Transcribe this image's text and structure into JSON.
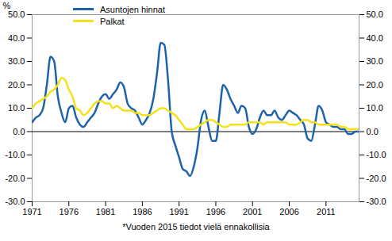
{
  "chart_data": {
    "type": "line",
    "caption": "*Vuoden 2015 tiedot vielä ennakollisia",
    "y_label": "%",
    "legend": "top-left",
    "grid": false,
    "x": [
      1971,
      1971.5,
      1972,
      1972.5,
      1973,
      1973.5,
      1974,
      1974.5,
      1975,
      1975.5,
      1976,
      1976.5,
      1977,
      1977.5,
      1978,
      1978.5,
      1979,
      1979.5,
      1980,
      1980.5,
      1981,
      1981.5,
      1982,
      1982.5,
      1983,
      1983.5,
      1984,
      1984.5,
      1985,
      1985.5,
      1986,
      1986.5,
      1987,
      1987.5,
      1988,
      1988.5,
      1989,
      1989.5,
      1990,
      1990.5,
      1991,
      1991.5,
      1992,
      1992.5,
      1993,
      1993.5,
      1994,
      1994.5,
      1995,
      1995.5,
      1996,
      1996.5,
      1997,
      1997.5,
      1998,
      1998.5,
      1999,
      1999.5,
      2000,
      2000.5,
      2001,
      2001.5,
      2002,
      2002.5,
      2003,
      2003.5,
      2004,
      2004.5,
      2005,
      2005.5,
      2006,
      2006.5,
      2007,
      2007.5,
      2008,
      2008.5,
      2009,
      2009.5,
      2010,
      2010.5,
      2011,
      2011.5,
      2012,
      2012.5,
      2013,
      2013.5,
      2014,
      2014.5,
      2015,
      2015.5
    ],
    "series": [
      {
        "name": "Asuntojen hinnat",
        "color": "#1c63ab",
        "values": [
          4,
          6,
          7,
          10,
          20,
          32,
          30,
          15,
          8,
          4,
          10,
          11,
          6,
          3,
          2,
          4,
          6,
          8,
          12,
          15,
          16,
          14,
          16,
          18,
          21,
          19,
          12,
          10,
          9,
          6,
          3,
          5,
          8,
          14,
          25,
          38,
          37,
          22,
          0,
          -6,
          -11,
          -16,
          -17,
          -19,
          -15,
          -7,
          5,
          9,
          2,
          -4,
          -4,
          8,
          20,
          18,
          14,
          11,
          8,
          11,
          10,
          2,
          -1,
          1,
          6,
          9,
          7,
          7,
          9,
          6,
          5,
          7,
          9,
          8,
          7,
          5,
          3,
          -3,
          -4,
          3,
          11,
          9,
          4,
          3,
          2,
          2,
          1,
          1,
          -1,
          -1,
          0,
          0
        ]
      },
      {
        "name": "Palkat",
        "color": "#f5e11b",
        "values": [
          10,
          12,
          13,
          14,
          15,
          17,
          18,
          20,
          23,
          22,
          18,
          15,
          10,
          9,
          7,
          8,
          10,
          12,
          13,
          13,
          12,
          12,
          10,
          11,
          10,
          9,
          9,
          9,
          8,
          8,
          7,
          7,
          7,
          8,
          9,
          10,
          10,
          9,
          8,
          7,
          5,
          3,
          1,
          1,
          1,
          2,
          3,
          4,
          5,
          5,
          4,
          3,
          2,
          2,
          3,
          3,
          3,
          3,
          3,
          4,
          4,
          4,
          4,
          3,
          4,
          4,
          4,
          4,
          4,
          4,
          3,
          3,
          3,
          4,
          5,
          5,
          4,
          4,
          3,
          3,
          3,
          3,
          3,
          3,
          2,
          2,
          1,
          1,
          1,
          1
        ]
      }
    ],
    "xlim": [
      1971,
      2015.5
    ],
    "xticks": [
      1971,
      1976,
      1981,
      1986,
      1991,
      1996,
      2001,
      2006,
      2011
    ],
    "ylim": [
      -30,
      50
    ],
    "yticks": [
      {
        "value": -30,
        "label": "-30.0"
      },
      {
        "value": -20,
        "label": "-20.0"
      },
      {
        "value": -10,
        "label": "-10.0"
      },
      {
        "value": 0,
        "label": "0.0"
      },
      {
        "value": 10,
        "label": "10.0"
      },
      {
        "value": 20,
        "label": "20.0"
      },
      {
        "value": 30,
        "label": "30.0"
      },
      {
        "value": 40,
        "label": "40.0"
      },
      {
        "value": 50,
        "label": "50.0"
      }
    ]
  }
}
